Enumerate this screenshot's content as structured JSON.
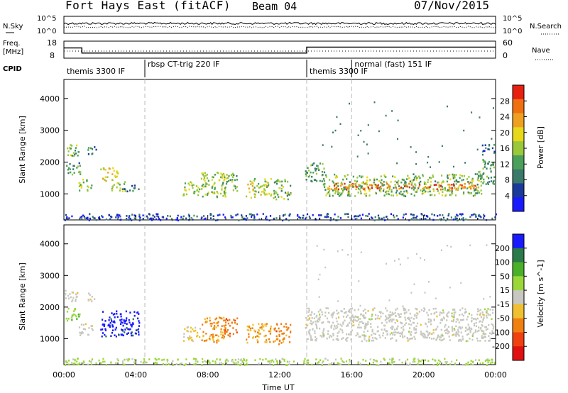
{
  "header": {
    "station": "Fort Hays East (fitACF)",
    "beam": "Beam 04",
    "date": "07/Nov/2015"
  },
  "status_panels": {
    "nsky_label": "N.Sky",
    "nsky_ticks": [
      "10^5",
      "10^0"
    ],
    "nsearch_label": "N.Search",
    "nsearch_ticks": [
      "10^5",
      "10^0"
    ],
    "freq_label_1": "Freq.",
    "freq_label_2": "[MHz]",
    "freq_ticks": [
      "18",
      "8"
    ],
    "nave_label": "Nave",
    "nave_ticks": [
      "60",
      "0"
    ],
    "cpid_label": "CPID",
    "cpid_segments": [
      {
        "label": "themis 3300 IF",
        "start_h": 0,
        "end_h": 4.5
      },
      {
        "label": "rbsp CT-trig 220 IF",
        "start_h": 4.5,
        "end_h": 13.5
      },
      {
        "label": "themis 3300 IF",
        "start_h": 13.5,
        "end_h": 16
      },
      {
        "label": "normal (fast) 151 IF",
        "start_h": 16,
        "end_h": 24
      }
    ],
    "freq_series": [
      [
        0,
        14
      ],
      [
        1,
        14
      ],
      [
        1,
        11
      ],
      [
        13.5,
        11
      ],
      [
        13.5,
        14.5
      ],
      [
        24,
        14.5
      ]
    ]
  },
  "chart_data": [
    {
      "type": "heatmap",
      "title": "",
      "xlabel": "Time UT",
      "ylabel": "Slant Range [km]",
      "xlim": [
        0,
        24
      ],
      "ylim": [
        180,
        4600
      ],
      "x_ticks": [
        "00:00",
        "04:00",
        "08:00",
        "12:00",
        "16:00",
        "20:00",
        "00:00"
      ],
      "y_ticks": [
        1000,
        2000,
        3000,
        4000
      ],
      "colorbar_label": "Power [dB]",
      "colorbar_ticks": [
        "4",
        "8",
        "12",
        "16",
        "20",
        "24",
        "28"
      ],
      "colorbar_range": [
        0,
        32
      ],
      "colors": [
        "#1a1aff",
        "#1a3a9c",
        "#3a7a6a",
        "#4aa05a",
        "#9ac83a",
        "#e8d81a",
        "#f0a020",
        "#f07010",
        "#e82010"
      ],
      "regions": [
        {
          "t": [
            0.0,
            0.8
          ],
          "r": [
            2200,
            2600
          ],
          "v": 14
        },
        {
          "t": [
            0.1,
            0.9
          ],
          "r": [
            1600,
            2000
          ],
          "v": 12
        },
        {
          "t": [
            0.8,
            1.6
          ],
          "r": [
            1100,
            1500
          ],
          "v": 16
        },
        {
          "t": [
            1.3,
            1.8
          ],
          "r": [
            2200,
            2500
          ],
          "v": 10
        },
        {
          "t": [
            2.0,
            3.0
          ],
          "r": [
            1400,
            1850
          ],
          "v": 20
        },
        {
          "t": [
            2.6,
            3.4
          ],
          "r": [
            1100,
            1450
          ],
          "v": 14
        },
        {
          "t": [
            3.3,
            4.2
          ],
          "r": [
            1100,
            1300
          ],
          "v": 10
        },
        {
          "t": [
            6.6,
            7.6
          ],
          "r": [
            950,
            1400
          ],
          "v": 16
        },
        {
          "t": [
            7.6,
            9.0
          ],
          "r": [
            900,
            1700
          ],
          "v": 16
        },
        {
          "t": [
            8.7,
            9.6
          ],
          "r": [
            1100,
            1700
          ],
          "v": 14
        },
        {
          "t": [
            10.1,
            11.5
          ],
          "r": [
            900,
            1500
          ],
          "v": 18
        },
        {
          "t": [
            11.6,
            12.6
          ],
          "r": [
            850,
            1500
          ],
          "v": 14
        },
        {
          "t": [
            13.4,
            14.5
          ],
          "r": [
            1400,
            2000
          ],
          "v": 12
        },
        {
          "t": [
            14.4,
            23.2
          ],
          "r": [
            950,
            1650
          ],
          "v": 14
        },
        {
          "t": [
            14.6,
            23.0
          ],
          "r": [
            1150,
            1350
          ],
          "v": 26
        },
        {
          "t": [
            23.0,
            23.9
          ],
          "r": [
            1300,
            2100
          ],
          "v": 12
        },
        {
          "t": [
            23.2,
            23.9
          ],
          "r": [
            2300,
            2600
          ],
          "v": 8
        },
        {
          "t": [
            0.0,
            24.0
          ],
          "r": [
            190,
            400
          ],
          "v": 6
        }
      ]
    },
    {
      "type": "heatmap",
      "title": "",
      "xlabel": "Time UT",
      "ylabel": "Slant Range [km]",
      "xlim": [
        0,
        24
      ],
      "ylim": [
        180,
        4600
      ],
      "x_ticks": [
        "00:00",
        "04:00",
        "08:00",
        "12:00",
        "16:00",
        "20:00",
        "00:00"
      ],
      "y_ticks": [
        1000,
        2000,
        3000,
        4000
      ],
      "colorbar_label": "Velocity [m s^-1]",
      "colorbar_ticks": [
        "200",
        "100",
        "50",
        "15",
        "-15",
        "-50",
        "-100",
        "-200"
      ],
      "colorbar_range": [
        -250,
        250
      ],
      "colors": [
        "#1a1aff",
        "#2a7a4a",
        "#4ab02a",
        "#9ad83a",
        "#c8c8c0",
        "#f0c030",
        "#f08010",
        "#f04010",
        "#e01010"
      ],
      "regions": [
        {
          "t": [
            0.0,
            0.8
          ],
          "r": [
            2200,
            2600
          ],
          "v": 0
        },
        {
          "t": [
            0.1,
            0.9
          ],
          "r": [
            1600,
            2000
          ],
          "v": 60
        },
        {
          "t": [
            0.8,
            1.6
          ],
          "r": [
            1100,
            1500
          ],
          "v": 0
        },
        {
          "t": [
            1.3,
            1.8
          ],
          "r": [
            2200,
            2500
          ],
          "v": 0
        },
        {
          "t": [
            2.0,
            4.2
          ],
          "r": [
            1100,
            1900
          ],
          "v": 220
        },
        {
          "t": [
            6.6,
            7.6
          ],
          "r": [
            950,
            1400
          ],
          "v": -40
        },
        {
          "t": [
            7.6,
            9.0
          ],
          "r": [
            900,
            1700
          ],
          "v": -90
        },
        {
          "t": [
            8.7,
            9.6
          ],
          "r": [
            1100,
            1700
          ],
          "v": -120
        },
        {
          "t": [
            10.1,
            11.5
          ],
          "r": [
            900,
            1500
          ],
          "v": -70
        },
        {
          "t": [
            11.6,
            12.6
          ],
          "r": [
            850,
            1500
          ],
          "v": -110
        },
        {
          "t": [
            13.4,
            23.9
          ],
          "r": [
            950,
            2000
          ],
          "v": 0
        },
        {
          "t": [
            0.0,
            24.0
          ],
          "r": [
            190,
            400
          ],
          "v": 40
        }
      ]
    }
  ]
}
